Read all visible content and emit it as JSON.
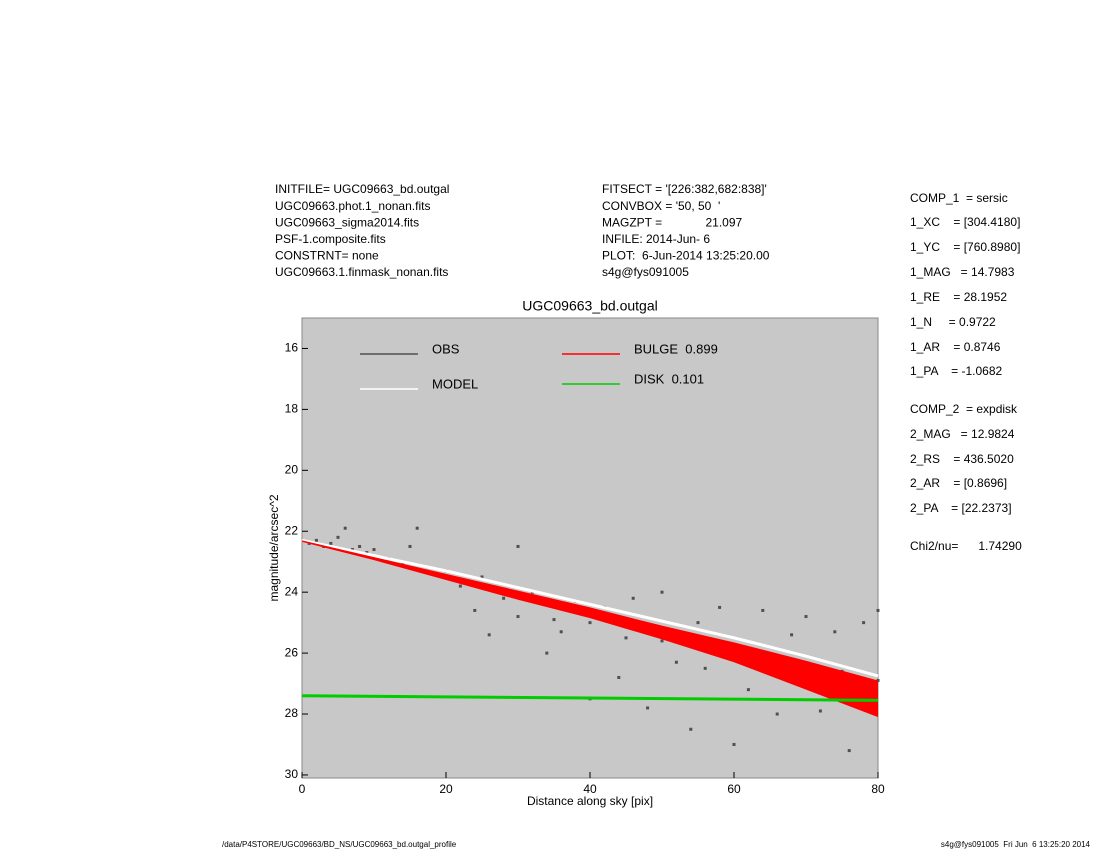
{
  "header": {
    "left": [
      "INITFILE= UGC09663_bd.outgal",
      "UGC09663.phot.1_nonan.fits",
      "UGC09663_sigma2014.fits",
      "PSF-1.composite.fits",
      "CONSTRNT= none",
      "UGC09663.1.finmask_nonan.fits"
    ],
    "middle": [
      "FITSECT = '[226:382,682:838]'",
      "CONVBOX = '50, 50  '",
      "MAGZPT =             21.097",
      "INFILE: 2014-Jun- 6",
      "PLOT:  6-Jun-2014 13:25:20.00",
      "s4g@fys091005"
    ]
  },
  "params": [
    "COMP_1  = sersic",
    "1_XC    = [304.4180]",
    "1_YC    = [760.8980]",
    "1_MAG   = 14.7983",
    "1_RE    = 28.1952",
    "1_N     = 0.9722",
    "1_AR    = 0.8746",
    "1_PA    = -1.0682",
    "COMP_2  = expdisk",
    "2_MAG   = 12.9824",
    "2_RS    = 436.5020",
    "2_AR    = [0.8696]",
    "2_PA    = [22.2373]",
    "Chi2/nu=      1.74290"
  ],
  "footer": {
    "left": "/data/P4STORE/UGC09663/BD_NS/UGC09663_bd.outgal_profile",
    "right": "s4g@fys091005  Fri Jun  6 13:25:20 2014"
  },
  "chart_data": {
    "type": "scatter",
    "title": "UGC09663_bd.outgal",
    "xlabel": "Distance along sky [pix]",
    "ylabel": "magnitude/arcsec^2",
    "xlim": [
      0,
      80
    ],
    "ylim": [
      30.1,
      15
    ],
    "xticks": [
      0,
      20,
      40,
      60,
      80
    ],
    "yticks": [
      16,
      18,
      20,
      22,
      24,
      26,
      28,
      30
    ],
    "background": "#c8c8c8",
    "series": [
      {
        "name": "OBS",
        "kind": "points",
        "color": "#505050",
        "x": [
          1,
          2,
          3,
          4,
          5,
          6,
          7,
          8,
          9,
          10,
          12,
          14,
          15,
          16,
          18,
          20,
          22,
          24,
          25,
          26,
          28,
          30,
          30,
          32,
          34,
          35,
          36,
          38,
          40,
          40,
          42,
          44,
          45,
          46,
          48,
          50,
          50,
          52,
          54,
          55,
          56,
          58,
          60,
          60,
          62,
          64,
          65,
          66,
          68,
          70,
          70,
          72,
          74,
          75,
          76,
          78,
          80,
          80
        ],
        "values": [
          22.4,
          22.3,
          22.5,
          22.4,
          22.2,
          21.9,
          22.6,
          22.5,
          22.7,
          22.6,
          22.9,
          23.1,
          22.5,
          21.9,
          23.4,
          23.3,
          23.8,
          24.6,
          23.5,
          25.4,
          24.2,
          22.5,
          24.8,
          24.0,
          26.0,
          24.9,
          25.3,
          24.3,
          25.0,
          27.5,
          24.5,
          26.8,
          25.5,
          24.2,
          27.8,
          25.6,
          24.0,
          26.3,
          28.5,
          25.0,
          26.5,
          24.5,
          26.1,
          29.0,
          27.2,
          24.6,
          26.4,
          28.0,
          25.4,
          26.8,
          24.8,
          27.9,
          25.3,
          26.6,
          29.2,
          25.0,
          26.9,
          24.6
        ]
      },
      {
        "name": "MODEL",
        "kind": "line",
        "color": "#ffffff",
        "x": [
          0,
          10,
          20,
          30,
          40,
          50,
          60,
          70,
          80
        ],
        "values": [
          22.3,
          22.8,
          23.3,
          23.85,
          24.4,
          24.95,
          25.5,
          26.1,
          26.75
        ]
      },
      {
        "name": "BULGE  0.899",
        "kind": "band",
        "color": "#ff0000",
        "x": [
          0,
          10,
          20,
          30,
          40,
          50,
          60,
          70,
          80
        ],
        "lower": [
          22.3,
          22.85,
          23.4,
          23.95,
          24.5,
          25.1,
          25.65,
          26.25,
          26.9
        ],
        "upper": [
          22.35,
          22.95,
          23.6,
          24.25,
          24.85,
          25.55,
          26.3,
          27.2,
          28.1
        ]
      },
      {
        "name": "DISK  0.101",
        "kind": "line",
        "color": "#00cc00",
        "x": [
          0,
          80
        ],
        "values": [
          27.4,
          27.55
        ]
      }
    ]
  }
}
